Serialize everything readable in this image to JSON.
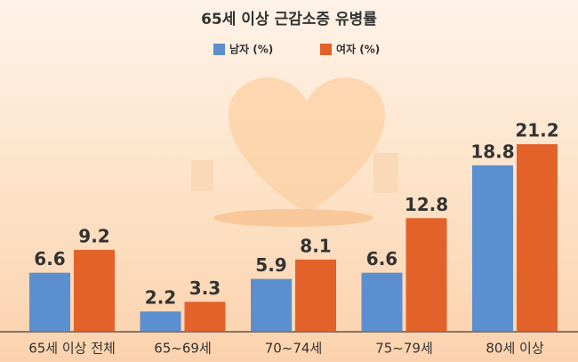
{
  "chart_data": {
    "type": "bar",
    "title": "65세 이상 근감소증 유병률",
    "categories": [
      "65세 이상 전체",
      "65~69세",
      "70~74세",
      "75~79세",
      "80세 이상"
    ],
    "series": [
      {
        "name": "남자 (%)",
        "color": "#5b8fd0",
        "values": [
          6.6,
          2.2,
          5.9,
          6.6,
          18.8
        ]
      },
      {
        "name": "여자 (%)",
        "color": "#e2622a",
        "values": [
          9.2,
          3.3,
          8.1,
          12.8,
          21.2
        ]
      }
    ]
  }
}
